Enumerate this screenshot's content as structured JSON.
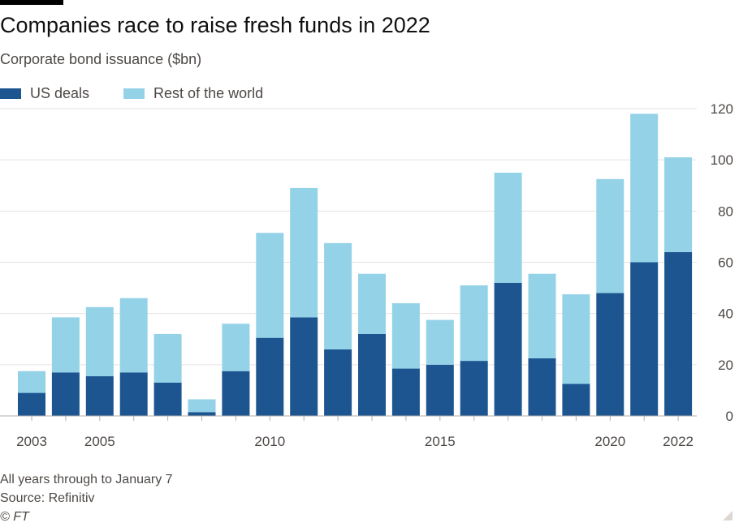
{
  "header": {
    "title": "Companies race to raise fresh funds in 2022",
    "subtitle": "Corporate bond issuance ($bn)"
  },
  "legend": [
    {
      "label": "US deals",
      "color": "#1d5590"
    },
    {
      "label": "Rest of the world",
      "color": "#94d2e8"
    }
  ],
  "footer": {
    "note": "All years through to January 7",
    "source": "Source: Refinitiv",
    "copyright": "© FT"
  },
  "chart_data": {
    "type": "bar",
    "stacked": true,
    "categories": [
      "2003",
      "2004",
      "2005",
      "2006",
      "2007",
      "2008",
      "2009",
      "2010",
      "2011",
      "2012",
      "2013",
      "2014",
      "2015",
      "2016",
      "2017",
      "2018",
      "2019",
      "2020",
      "2021",
      "2022"
    ],
    "series": [
      {
        "name": "US deals",
        "color": "#1d5590",
        "values": [
          9,
          17,
          15.5,
          17,
          13,
          1.5,
          17.5,
          30.5,
          38.5,
          26,
          32,
          18.5,
          20,
          21.5,
          52,
          22.5,
          12.5,
          48,
          60,
          64
        ]
      },
      {
        "name": "Rest of the world",
        "color": "#94d2e8",
        "values": [
          8.5,
          21.5,
          27,
          29,
          19,
          5,
          18.5,
          41,
          50.5,
          41.5,
          23.5,
          25.5,
          17.5,
          29.5,
          43,
          33,
          35,
          44.5,
          58,
          37
        ]
      }
    ],
    "x_tick_labels": [
      "2003",
      "2005",
      "2010",
      "2015",
      "2020",
      "2022"
    ],
    "y_ticks": [
      0,
      20,
      40,
      60,
      80,
      100,
      120
    ],
    "ylim": [
      0,
      120
    ],
    "ylabel": "",
    "xlabel": "",
    "grid": true,
    "legend_position": "top-left",
    "y_axis_side": "right"
  }
}
